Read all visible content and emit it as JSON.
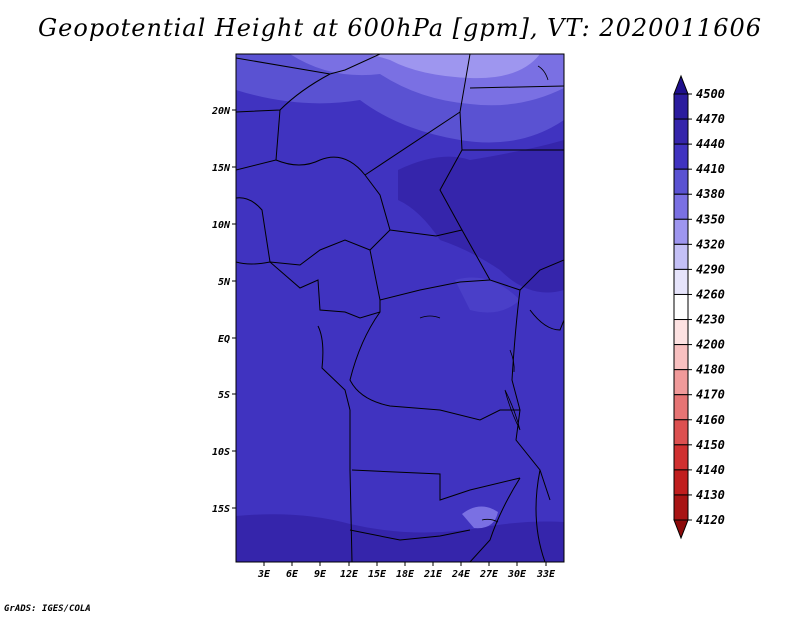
{
  "title": "Geopotential Height at 600hPa [gpm], VT: 2020011606",
  "credit": "GrADS: IGES/COLA",
  "map": {
    "lat_labels": [
      "20N",
      "15N",
      "10N",
      "5N",
      "EQ",
      "5S",
      "10S",
      "15S"
    ],
    "lon_labels": [
      "3E",
      "6E",
      "9E",
      "12E",
      "15E",
      "18E",
      "21E",
      "24E",
      "27E",
      "30E",
      "33E"
    ]
  },
  "colorbar": {
    "levels": [
      "4500",
      "4470",
      "4440",
      "4410",
      "4380",
      "4350",
      "4320",
      "4290",
      "4260",
      "4230",
      "4200",
      "4180",
      "4170",
      "4160",
      "4150",
      "4140",
      "4130",
      "4120"
    ],
    "colors": [
      "#1e0f8c",
      "#2b1c9e",
      "#3525ab",
      "#4033c0",
      "#5a52d2",
      "#7a70e3",
      "#9e96ef",
      "#c4c0f6",
      "#e6e4fb",
      "#ffffff",
      "#fde2e2",
      "#f8c0c0",
      "#f09a9a",
      "#e67474",
      "#dc5050",
      "#d03030",
      "#c01e1e",
      "#a81414",
      "#8c0a0a"
    ]
  }
}
